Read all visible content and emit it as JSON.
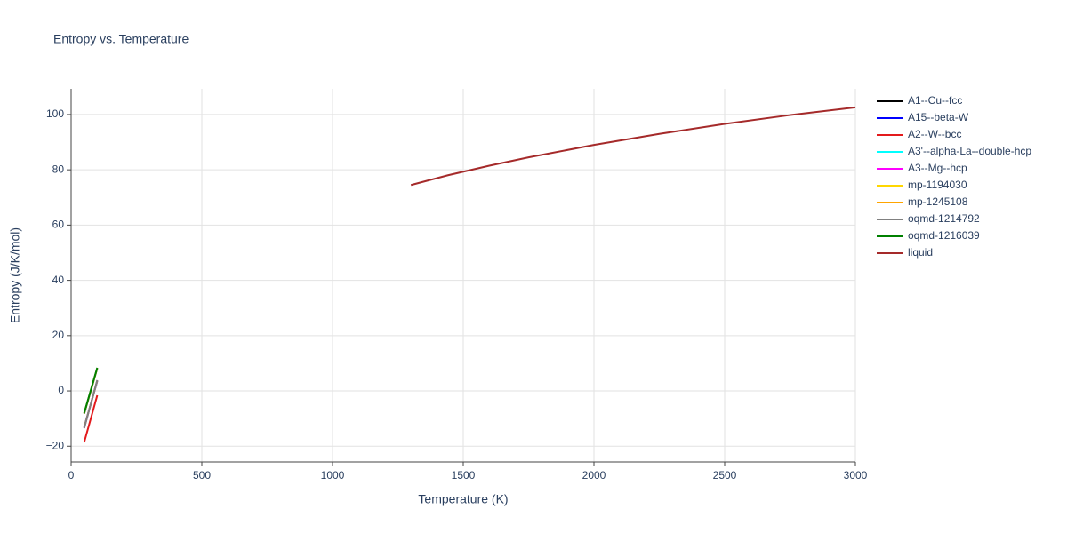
{
  "chart_data": {
    "type": "line",
    "title": "Entropy vs. Temperature",
    "x_label": "Temperature (K)",
    "y_label": "Entropy (J/K/mol)",
    "xlim": [
      0,
      3000
    ],
    "ylim": [
      -25.7,
      109.3
    ],
    "xticks": [
      0,
      500,
      1000,
      1500,
      2000,
      2500,
      3000
    ],
    "yticks": [
      {
        "value": -20,
        "label": "−20"
      },
      0,
      20,
      40,
      60,
      80,
      100
    ],
    "grid": true,
    "legend": "right",
    "series": [
      {
        "name": "A1--Cu--fcc",
        "color": "#000000",
        "x": [
          50,
          75,
          100
        ],
        "values": [
          -8.2,
          0,
          8.2
        ]
      },
      {
        "name": "A15--beta-W",
        "color": "#0000ff",
        "x": [
          50,
          75,
          100
        ],
        "values": [
          -13.0,
          -4.8,
          3.5
        ]
      },
      {
        "name": "A2--W--bcc",
        "color": "#e31a1c",
        "x": [
          50,
          75,
          100
        ],
        "values": [
          -18.6,
          -10.1,
          -1.6
        ]
      },
      {
        "name": "A3'--alpha-La--double-hcp",
        "color": "#00ffff",
        "x": [
          50,
          75,
          100
        ],
        "values": [
          -13.3,
          -4.8,
          3.7
        ]
      },
      {
        "name": "A3--Mg--hcp",
        "color": "#ff00ff",
        "x": [
          50,
          75,
          100
        ],
        "values": [
          -13.4,
          -4.8,
          3.8
        ]
      },
      {
        "name": "mp-1194030",
        "color": "#ffd700",
        "x": [
          50,
          75,
          100
        ],
        "values": [
          -8.1,
          0.1,
          8.3
        ]
      },
      {
        "name": "mp-1245108",
        "color": "#ffa500",
        "x": [
          50,
          75,
          100
        ],
        "values": [
          -13.2,
          -4.8,
          3.7
        ]
      },
      {
        "name": "oqmd-1214792",
        "color": "#808080",
        "x": [
          50,
          75,
          100
        ],
        "values": [
          -13.5,
          -4.8,
          3.9
        ]
      },
      {
        "name": "oqmd-1216039",
        "color": "#008000",
        "x": [
          50,
          75,
          100
        ],
        "values": [
          -8.0,
          0.2,
          8.4
        ]
      },
      {
        "name": "liquid",
        "color": "#a52a2a",
        "x": [
          1300,
          1440,
          1600,
          1750,
          2000,
          2250,
          2500,
          2750,
          3000
        ],
        "values": [
          74.5,
          78.0,
          81.5,
          84.5,
          89.0,
          93.0,
          96.6,
          99.8,
          102.6
        ]
      }
    ]
  }
}
